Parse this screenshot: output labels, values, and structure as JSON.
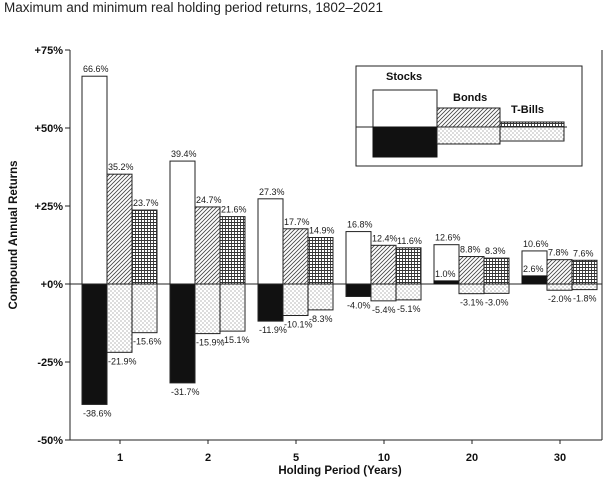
{
  "chart_data": {
    "type": "bar",
    "title": "Maximum and minimum real holding period returns, 1802–2021",
    "xlabel": "Holding Period (Years)",
    "ylabel": "Compound Annual Returns",
    "ylim": [
      -50,
      75
    ],
    "y_ticks": [
      "+75%",
      "+50%",
      "+25%",
      "+0%",
      "-25%",
      "-50%"
    ],
    "categories": [
      "1",
      "2",
      "5",
      "10",
      "20",
      "30"
    ],
    "series": [
      {
        "name": "Stocks",
        "max": [
          66.6,
          39.4,
          27.3,
          16.8,
          12.6,
          10.6
        ],
        "min": [
          -38.6,
          -31.7,
          -11.9,
          -4.0,
          1.0,
          2.6
        ],
        "max_labels": [
          "66.6%",
          "39.4%",
          "27.3%",
          "16.8%",
          "12.6%",
          "10.6%"
        ],
        "min_labels": [
          "-38.6%",
          "-31.7%",
          "-11.9%",
          "-4.0%",
          "1.0%",
          "2.6%"
        ]
      },
      {
        "name": "Bonds",
        "max": [
          35.2,
          24.7,
          17.7,
          12.4,
          8.8,
          7.8
        ],
        "min": [
          -21.9,
          -15.9,
          -10.1,
          -5.4,
          -3.1,
          -2.0
        ],
        "max_labels": [
          "35.2%",
          "24.7%",
          "17.7%",
          "12.4%",
          "8.8%",
          "7.8%"
        ],
        "min_labels": [
          "-21.9%",
          "-15.9%",
          "-10.1%",
          "-5.4%",
          "-3.1%",
          "-2.0%"
        ]
      },
      {
        "name": "T-Bills",
        "max": [
          23.7,
          21.6,
          14.9,
          11.6,
          8.3,
          7.6
        ],
        "min": [
          -15.6,
          -15.1,
          -8.3,
          -5.1,
          -3.0,
          -1.8
        ],
        "max_labels": [
          "23.7%",
          "21.6%",
          "14.9%",
          "11.6%",
          "8.3%",
          "7.6%"
        ],
        "min_labels": [
          "-15.6%",
          "-15.1%",
          "-8.3%",
          "-5.1%",
          "-3.0%",
          "-1.8%"
        ]
      }
    ],
    "legend": {
      "placement": "top-right",
      "items": [
        "Stocks",
        "Bonds",
        "T-Bills"
      ]
    },
    "grid": false
  }
}
